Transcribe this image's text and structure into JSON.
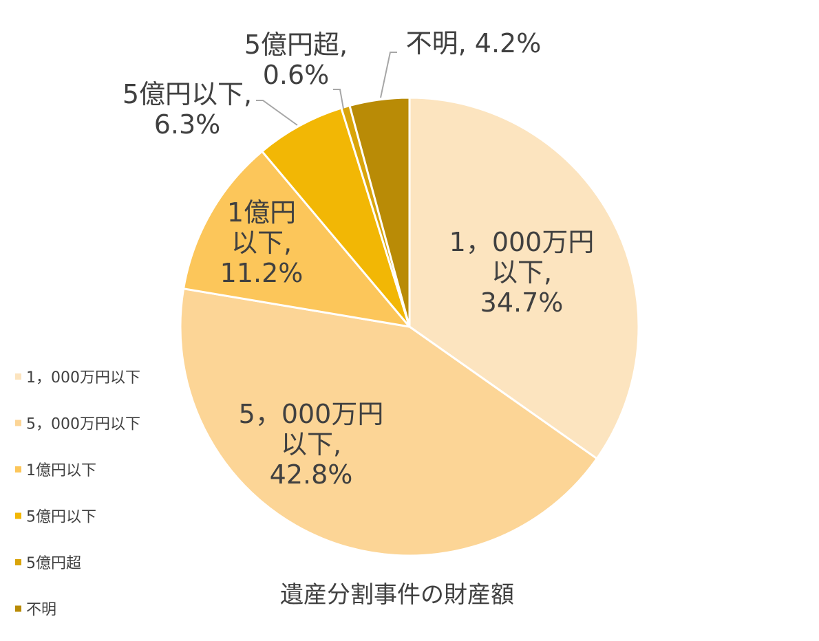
{
  "chart_data": {
    "type": "pie",
    "title": "遺産分割事件の財産額",
    "categories": [
      "1，000万円以下",
      "5，000万円以下",
      "1億円以下",
      "5億円以下",
      "5億円超",
      "不明"
    ],
    "values": [
      34.7,
      42.8,
      11.2,
      6.3,
      0.6,
      4.2
    ],
    "value_labels": [
      "34.7%",
      "42.8%",
      "11.2%",
      "6.3%",
      "0.6%",
      "4.2%"
    ],
    "slice_labels": [
      [
        "1，000万円",
        "以下,",
        "34.7%"
      ],
      [
        "5，000万円",
        "以下,",
        "42.8%"
      ],
      [
        "1億円",
        "以下,",
        "11.2%"
      ],
      [
        "5億円以下,",
        "6.3%"
      ],
      [
        "5億円超,",
        "0.6%"
      ],
      [
        "不明, 4.2%"
      ]
    ],
    "colors": [
      "#fce4bf",
      "#fcd596",
      "#fcc65a",
      "#f2b705",
      "#d9a40a",
      "#b98b06"
    ],
    "legend": {
      "position": "left",
      "entries": [
        "1，000万円以下",
        "5，000万円以下",
        "1億円以下",
        "5億円以下",
        "5億円超",
        "不明"
      ]
    }
  }
}
